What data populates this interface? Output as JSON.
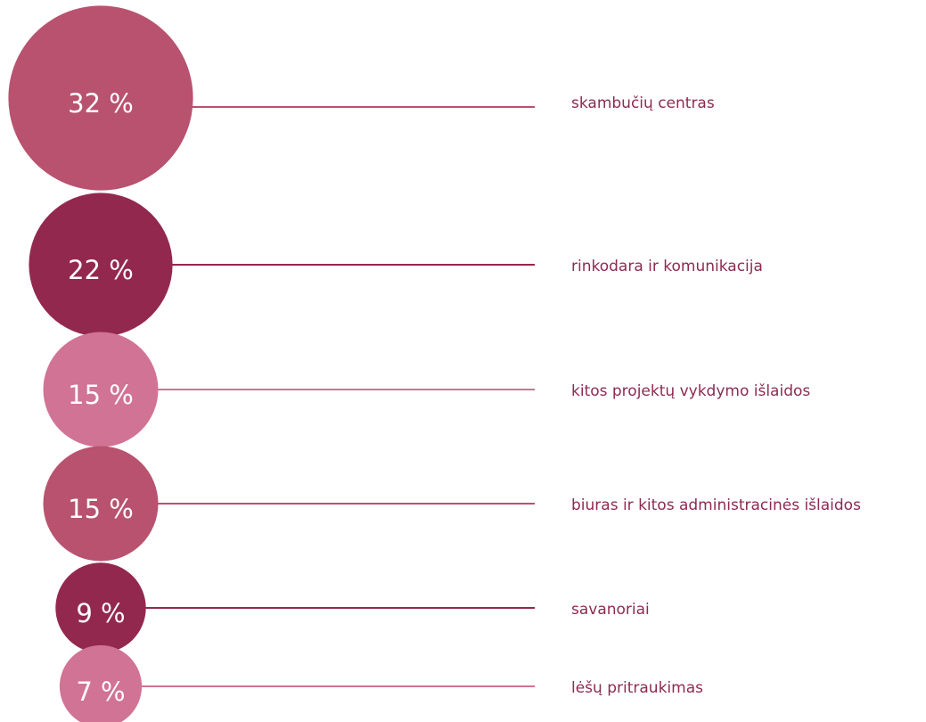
{
  "chart_data": {
    "type": "bubble",
    "categories": [
      "skambučių centras",
      "rinkodara ir komunikacija",
      "kitos projektų vykdymo išlaidos",
      "biuras ir kitos administracinės išlaidos",
      "savanoriai",
      "lėšų pritraukimas"
    ],
    "values": [
      32,
      22,
      15,
      15,
      9,
      7
    ],
    "value_labels": [
      "32 %",
      "22 %",
      "15 %",
      "15 %",
      "9 %",
      "7 %"
    ],
    "colors": [
      "#b8526f",
      "#93284f",
      "#d17394",
      "#b8526f",
      "#93284f",
      "#d17394"
    ]
  }
}
